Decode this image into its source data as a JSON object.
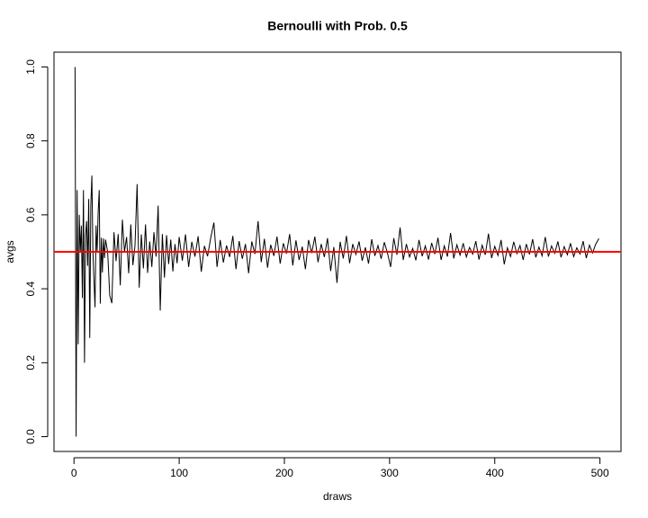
{
  "chart_data": {
    "type": "line",
    "title": "Bernoulli with Prob. 0.5",
    "xlabel": "draws",
    "ylabel": "avgs",
    "x": [
      1,
      2,
      3,
      4,
      5,
      6,
      7,
      8,
      9,
      10,
      11,
      12,
      13,
      14,
      15,
      16,
      17,
      18,
      19,
      20,
      21,
      22,
      23,
      24,
      25,
      26,
      27,
      28,
      29,
      30,
      32,
      34,
      36,
      38,
      40,
      42,
      44,
      46,
      48,
      50,
      52,
      54,
      56,
      58,
      60,
      62,
      64,
      66,
      68,
      70,
      72,
      74,
      76,
      78,
      80,
      82,
      84,
      86,
      88,
      90,
      92,
      94,
      96,
      98,
      100,
      103,
      106,
      109,
      112,
      115,
      118,
      121,
      124,
      127,
      130,
      133,
      136,
      139,
      142,
      145,
      148,
      151,
      154,
      157,
      160,
      163,
      166,
      169,
      172,
      175,
      178,
      181,
      184,
      187,
      190,
      193,
      196,
      199,
      202,
      205,
      208,
      211,
      214,
      217,
      220,
      223,
      226,
      229,
      232,
      235,
      238,
      241,
      244,
      247,
      250,
      253,
      256,
      259,
      262,
      265,
      268,
      271,
      274,
      277,
      280,
      283,
      286,
      289,
      292,
      295,
      298,
      301,
      304,
      307,
      310,
      313,
      316,
      319,
      322,
      325,
      328,
      331,
      334,
      337,
      340,
      343,
      346,
      349,
      352,
      355,
      358,
      361,
      364,
      367,
      370,
      373,
      376,
      379,
      382,
      385,
      388,
      391,
      394,
      397,
      400,
      403,
      406,
      409,
      412,
      415,
      418,
      421,
      424,
      427,
      430,
      433,
      436,
      439,
      442,
      445,
      448,
      451,
      454,
      457,
      460,
      463,
      466,
      469,
      472,
      475,
      478,
      481,
      484,
      487,
      490,
      493,
      496,
      499
    ],
    "series": [
      {
        "name": "avgs",
        "color": "#000000",
        "values": [
          1.0,
          0.0,
          0.667,
          0.25,
          0.6,
          0.5,
          0.571,
          0.375,
          0.667,
          0.2,
          0.545,
          0.583,
          0.462,
          0.643,
          0.267,
          0.625,
          0.706,
          0.5,
          0.421,
          0.35,
          0.571,
          0.5,
          0.609,
          0.667,
          0.36,
          0.538,
          0.444,
          0.536,
          0.483,
          0.533,
          0.5,
          0.382,
          0.361,
          0.553,
          0.475,
          0.548,
          0.409,
          0.587,
          0.5,
          0.54,
          0.442,
          0.574,
          0.464,
          0.517,
          0.683,
          0.403,
          0.547,
          0.455,
          0.574,
          0.443,
          0.528,
          0.459,
          0.553,
          0.487,
          0.625,
          0.341,
          0.548,
          0.43,
          0.545,
          0.467,
          0.533,
          0.447,
          0.521,
          0.469,
          0.54,
          0.476,
          0.547,
          0.459,
          0.527,
          0.487,
          0.542,
          0.446,
          0.516,
          0.488,
          0.538,
          0.579,
          0.459,
          0.532,
          0.471,
          0.517,
          0.486,
          0.543,
          0.453,
          0.529,
          0.481,
          0.521,
          0.442,
          0.528,
          0.494,
          0.583,
          0.472,
          0.535,
          0.457,
          0.519,
          0.489,
          0.541,
          0.468,
          0.523,
          0.495,
          0.548,
          0.463,
          0.531,
          0.478,
          0.514,
          0.453,
          0.532,
          0.497,
          0.541,
          0.472,
          0.521,
          0.486,
          0.537,
          0.448,
          0.513,
          0.416,
          0.527,
          0.482,
          0.543,
          0.469,
          0.521,
          0.493,
          0.528,
          0.476,
          0.512,
          0.468,
          0.534,
          0.489,
          0.517,
          0.481,
          0.526,
          0.497,
          0.459,
          0.537,
          0.492,
          0.566,
          0.478,
          0.521,
          0.486,
          0.509,
          0.477,
          0.532,
          0.488,
          0.516,
          0.479,
          0.524,
          0.494,
          0.538,
          0.478,
          0.516,
          0.487,
          0.551,
          0.482,
          0.519,
          0.491,
          0.523,
          0.486,
          0.512,
          0.494,
          0.529,
          0.479,
          0.518,
          0.492,
          0.549,
          0.483,
          0.515,
          0.49,
          0.532,
          0.466,
          0.511,
          0.487,
          0.527,
          0.495,
          0.517,
          0.478,
          0.521,
          0.493,
          0.534,
          0.485,
          0.513,
          0.489,
          0.54,
          0.487,
          0.516,
          0.496,
          0.528,
          0.485,
          0.514,
          0.492,
          0.523,
          0.487,
          0.511,
          0.494,
          0.529,
          0.483,
          0.518,
          0.497,
          0.521,
          0.536
        ]
      }
    ],
    "hline": {
      "value": 0.5,
      "color": "#ff0000"
    },
    "xlim": [
      -19,
      520
    ],
    "xticks": [
      0,
      100,
      200,
      300,
      400,
      500
    ],
    "ylim": [
      -0.04,
      1.04
    ],
    "yticks": [
      {
        "value": 0,
        "label": "0.0"
      },
      {
        "value": 0.2,
        "label": "0.2"
      },
      {
        "value": 0.4,
        "label": "0.4"
      },
      {
        "value": 0.6,
        "label": "0.6"
      },
      {
        "value": 0.8,
        "label": "0.8"
      },
      {
        "value": 1,
        "label": "1.0"
      }
    ]
  }
}
